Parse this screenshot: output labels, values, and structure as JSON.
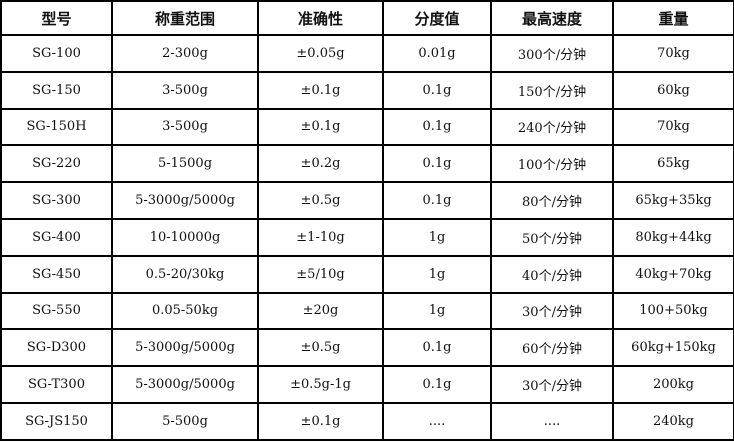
{
  "headers": [
    "型号",
    "称重范围",
    "准确性",
    "分度值",
    "最高速度",
    "重量"
  ],
  "rows": [
    [
      "SG-100",
      "2-300g",
      "±0.05g",
      "0.01g",
      "300个/分钟",
      "70kg"
    ],
    [
      "SG-150",
      "3-500g",
      "±0.1g",
      "0.1g",
      "150个/分钟",
      "60kg"
    ],
    [
      "SG-150H",
      "3-500g",
      "±0.1g",
      "0.1g",
      "240个/分钟",
      "70kg"
    ],
    [
      "SG-220",
      "5-1500g",
      "±0.2g",
      "0.1g",
      "100个/分钟",
      "65kg"
    ],
    [
      "SG-300",
      "5-3000g/5000g",
      "±0.5g",
      "0.1g",
      "80个/分钟",
      "65kg+35kg"
    ],
    [
      "SG-400",
      "10-10000g",
      "±1-10g",
      "1g",
      "50个/分钟",
      "80kg+44kg"
    ],
    [
      "SG-450",
      "0.5-20/30kg",
      "±5/10g",
      "1g",
      "40个/分钟",
      "40kg+70kg"
    ],
    [
      "SG-550",
      "0.05-50kg",
      "±20g",
      "1g",
      "30个/分钟",
      "100+50kg"
    ],
    [
      "SG-D300",
      "5-3000g/5000g",
      "±0.5g",
      "0.1g",
      "60个/分钟",
      "60kg+150kg"
    ],
    [
      "SG-T300",
      "5-3000g/5000g",
      "±0.5g-1g",
      "0.1g",
      "30个/分钟",
      "200kg"
    ],
    [
      "SG-JS150",
      "5-500g",
      "±0.1g",
      "....",
      "....",
      "240kg"
    ]
  ]
}
